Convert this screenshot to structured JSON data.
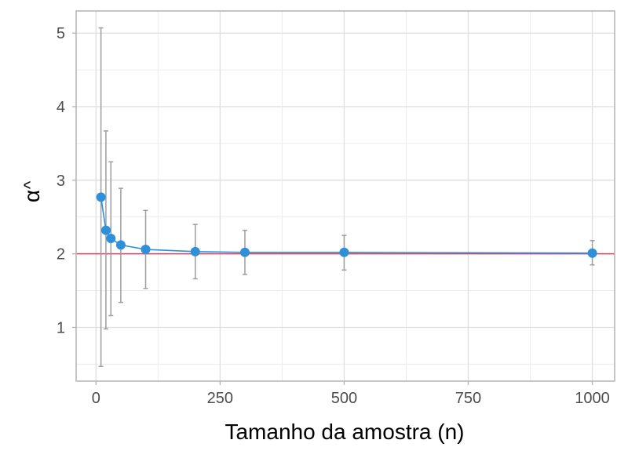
{
  "chart_data": {
    "type": "line",
    "xlabel": "Tamanho da amostra (n)",
    "ylabel": "α",
    "ylabel_accent": "^",
    "xlim": [
      -40,
      1045
    ],
    "ylim": [
      0.27,
      5.3
    ],
    "x_ticks": [
      0,
      250,
      500,
      750,
      1000
    ],
    "x_tick_labels": [
      "0",
      "250",
      "500",
      "750",
      "1000"
    ],
    "y_ticks": [
      1,
      2,
      3,
      4,
      5
    ],
    "y_tick_labels": [
      "1",
      "2",
      "3",
      "4",
      "5"
    ],
    "grid": true,
    "reference_line": {
      "y": 2,
      "color": "#e0405e"
    },
    "series": [
      {
        "color": "#2e90d8",
        "points": [
          {
            "x": 10,
            "y": 2.77,
            "lower": 0.47,
            "upper": 5.07
          },
          {
            "x": 20,
            "y": 2.32,
            "lower": 0.98,
            "upper": 3.67
          },
          {
            "x": 30,
            "y": 2.21,
            "lower": 1.16,
            "upper": 3.25
          },
          {
            "x": 50,
            "y": 2.12,
            "lower": 1.34,
            "upper": 2.89
          },
          {
            "x": 100,
            "y": 2.06,
            "lower": 1.53,
            "upper": 2.59
          },
          {
            "x": 200,
            "y": 2.03,
            "lower": 1.66,
            "upper": 2.4
          },
          {
            "x": 300,
            "y": 2.02,
            "lower": 1.72,
            "upper": 2.32
          },
          {
            "x": 500,
            "y": 2.02,
            "lower": 1.78,
            "upper": 2.25
          },
          {
            "x": 1000,
            "y": 2.01,
            "lower": 1.85,
            "upper": 2.18
          }
        ]
      }
    ],
    "colors": {
      "panel_border": "#b3b3b3",
      "grid_major": "#dedede",
      "grid_minor": "#ececec",
      "error_bar": "#9e9e9e"
    }
  }
}
